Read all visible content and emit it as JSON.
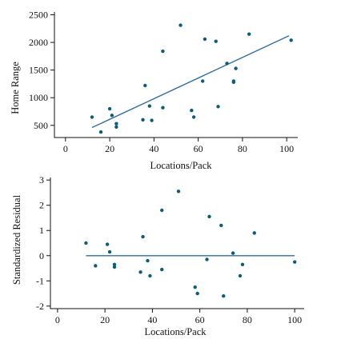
{
  "chart_data": [
    {
      "type": "scatter",
      "title": "",
      "xlabel": "Locations/Pack",
      "ylabel": "Home Range",
      "xlim": [
        -5,
        105
      ],
      "ylim": [
        280,
        2550
      ],
      "xticks": [
        0,
        20,
        40,
        60,
        80,
        100
      ],
      "yticks": [
        500,
        1000,
        1500,
        2000,
        2500
      ],
      "grid": false,
      "legend": "none",
      "colors": {
        "points": "#0b5e78",
        "line": "#2f6ea8"
      },
      "regression_line": {
        "x": [
          12,
          101
        ],
        "y": [
          460,
          2120
        ]
      },
      "points": [
        {
          "x": 12,
          "y": 650
        },
        {
          "x": 16,
          "y": 380
        },
        {
          "x": 20,
          "y": 800
        },
        {
          "x": 21,
          "y": 680
        },
        {
          "x": 23,
          "y": 530
        },
        {
          "x": 23,
          "y": 470
        },
        {
          "x": 35,
          "y": 600
        },
        {
          "x": 36,
          "y": 1220
        },
        {
          "x": 38,
          "y": 850
        },
        {
          "x": 39,
          "y": 590
        },
        {
          "x": 44,
          "y": 820
        },
        {
          "x": 44,
          "y": 1840
        },
        {
          "x": 52,
          "y": 2310
        },
        {
          "x": 57,
          "y": 770
        },
        {
          "x": 58,
          "y": 650
        },
        {
          "x": 62,
          "y": 1300
        },
        {
          "x": 63,
          "y": 2060
        },
        {
          "x": 68,
          "y": 2020
        },
        {
          "x": 69,
          "y": 840
        },
        {
          "x": 73,
          "y": 1620
        },
        {
          "x": 76,
          "y": 1300
        },
        {
          "x": 76,
          "y": 1280
        },
        {
          "x": 77,
          "y": 1530
        },
        {
          "x": 83,
          "y": 2150
        },
        {
          "x": 102,
          "y": 2040
        }
      ]
    },
    {
      "type": "scatter",
      "title": "",
      "xlabel": "Locations/Pack",
      "ylabel": "Standardized Residual",
      "xlim": [
        -3,
        104
      ],
      "ylim": [
        -2.1,
        3.1
      ],
      "xticks": [
        0,
        20,
        40,
        60,
        80,
        100
      ],
      "yticks": [
        -2,
        -1,
        0,
        1,
        2,
        3
      ],
      "grid": false,
      "legend": "none",
      "colors": {
        "points": "#0b5e78",
        "line": "#2f6ea8"
      },
      "reference_line": {
        "y": 0,
        "x": [
          12,
          100
        ]
      },
      "points": [
        {
          "x": 12,
          "y": 0.5
        },
        {
          "x": 16,
          "y": -0.4
        },
        {
          "x": 21,
          "y": 0.45
        },
        {
          "x": 22,
          "y": 0.15
        },
        {
          "x": 24,
          "y": -0.35
        },
        {
          "x": 24,
          "y": -0.45
        },
        {
          "x": 35,
          "y": -0.65
        },
        {
          "x": 36,
          "y": 0.75
        },
        {
          "x": 38,
          "y": -0.2
        },
        {
          "x": 39,
          "y": -0.8
        },
        {
          "x": 44,
          "y": -0.55
        },
        {
          "x": 44,
          "y": 1.8
        },
        {
          "x": 51,
          "y": 2.55
        },
        {
          "x": 58,
          "y": -1.25
        },
        {
          "x": 59,
          "y": -1.5
        },
        {
          "x": 63,
          "y": -0.15
        },
        {
          "x": 64,
          "y": 1.55
        },
        {
          "x": 69,
          "y": 1.2
        },
        {
          "x": 70,
          "y": -1.6
        },
        {
          "x": 74,
          "y": 0.1
        },
        {
          "x": 77,
          "y": -0.8
        },
        {
          "x": 78,
          "y": -0.35
        },
        {
          "x": 83,
          "y": 0.9
        },
        {
          "x": 100,
          "y": -0.25
        }
      ]
    }
  ]
}
